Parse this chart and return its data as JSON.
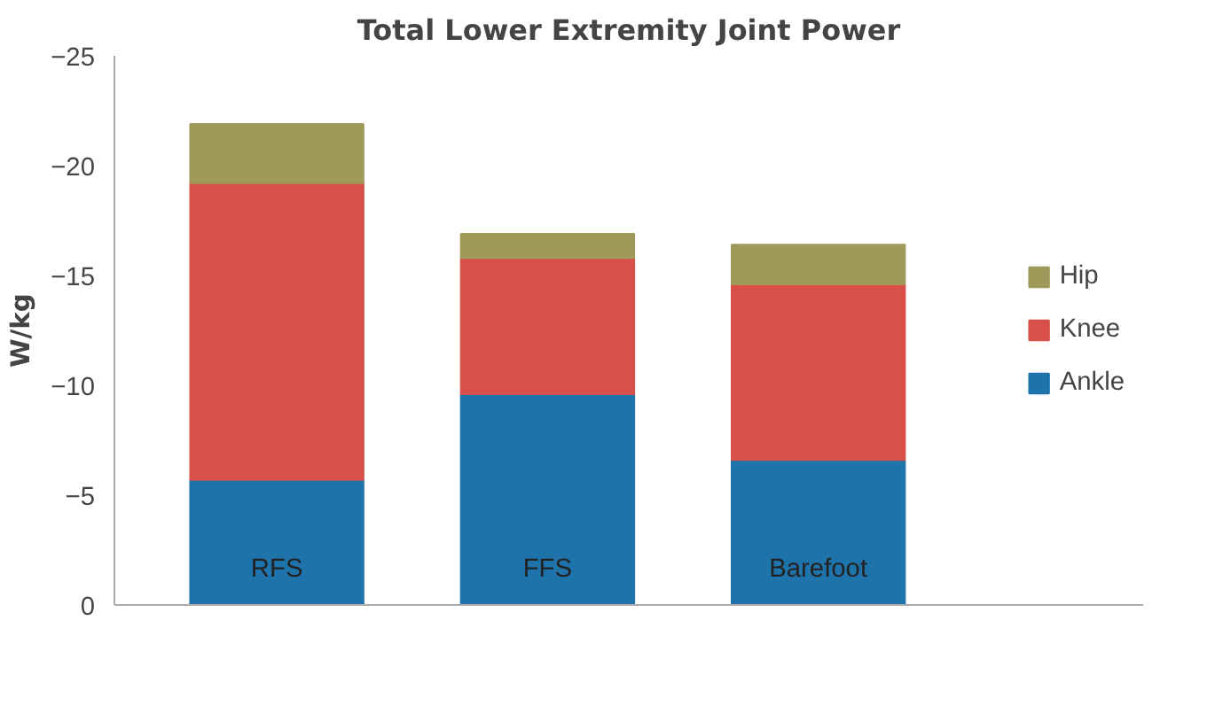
{
  "chart_data": {
    "type": "bar",
    "title": "Total Lower Extremity Joint Power",
    "ylabel": "W/kg",
    "categories": [
      "RFS",
      "FFS",
      "Barefoot"
    ],
    "stacked": true,
    "series": [
      {
        "name": "Ankle",
        "color": "#1f73ab",
        "values": [
          -5.7,
          -9.6,
          -6.6
        ]
      },
      {
        "name": "Knee",
        "color": "#d9504a",
        "values": [
          -13.5,
          -6.2,
          -8.0
        ]
      },
      {
        "name": "Hip",
        "color": "#a0995a",
        "values": [
          -2.7,
          -1.1,
          -1.8
        ]
      }
    ],
    "ylim": [
      0,
      -25
    ],
    "yticks": [
      0,
      -5,
      -10,
      -15,
      -20,
      -25
    ],
    "grid": false,
    "legend": "right"
  }
}
